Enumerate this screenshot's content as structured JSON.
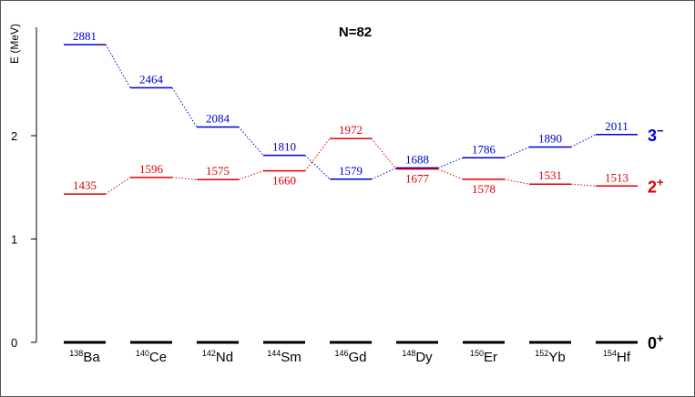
{
  "chart_data": {
    "type": "level_scheme",
    "title": "N=82",
    "ylabel": "E (MeV)",
    "ylim": [
      0,
      3.2
    ],
    "yticks": [
      0,
      1,
      2
    ],
    "yticks_printed": [
      "0",
      "1",
      "2"
    ],
    "grid": false,
    "categories": [
      {
        "sup": "138",
        "el": "Ba"
      },
      {
        "sup": "140",
        "el": "Ce"
      },
      {
        "sup": "142",
        "el": "Nd"
      },
      {
        "sup": "144",
        "el": "Sm"
      },
      {
        "sup": "146",
        "el": "Gd"
      },
      {
        "sup": "148",
        "el": "Dy"
      },
      {
        "sup": "150",
        "el": "Er"
      },
      {
        "sup": "152",
        "el": "Yb"
      },
      {
        "sup": "154",
        "el": "Hf"
      }
    ],
    "series": [
      {
        "name": "3",
        "name_sup": "−",
        "color": "#0000cc",
        "values": [
          2881,
          2464,
          2084,
          1810,
          1579,
          1688,
          1786,
          1890,
          2011
        ],
        "label_side": [
          "above",
          "above",
          "above",
          "above",
          "above",
          "above",
          "above",
          "above",
          "above"
        ]
      },
      {
        "name": "2",
        "name_sup": "+",
        "color": "#dd0000",
        "values": [
          1435,
          1596,
          1575,
          1660,
          1972,
          1677,
          1578,
          1531,
          1513
        ],
        "label_side": [
          "above",
          "above",
          "above",
          "below",
          "above",
          "below",
          "below",
          "above",
          "above"
        ]
      },
      {
        "name": "0",
        "name_sup": "+",
        "color": "#000000",
        "values": [
          0,
          0,
          0,
          0,
          0,
          0,
          0,
          0,
          0
        ],
        "label_side": []
      }
    ]
  }
}
